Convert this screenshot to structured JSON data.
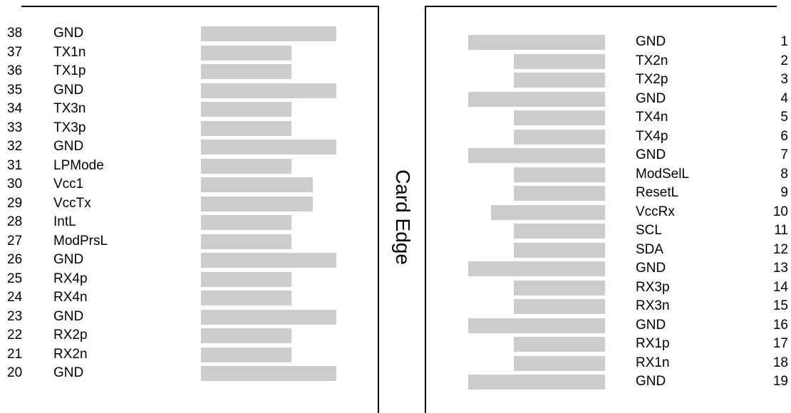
{
  "edge_label": "Card Edge",
  "left_pins": [
    {
      "num": "38",
      "signal": "GND",
      "size": "long"
    },
    {
      "num": "37",
      "signal": "TX1n",
      "size": "short"
    },
    {
      "num": "36",
      "signal": "TX1p",
      "size": "short"
    },
    {
      "num": "35",
      "signal": "GND",
      "size": "long"
    },
    {
      "num": "34",
      "signal": "TX3n",
      "size": "short"
    },
    {
      "num": "33",
      "signal": "TX3p",
      "size": "short"
    },
    {
      "num": "32",
      "signal": "GND",
      "size": "long"
    },
    {
      "num": "31",
      "signal": "LPMode",
      "size": "short"
    },
    {
      "num": "30",
      "signal": "Vcc1",
      "size": "medium"
    },
    {
      "num": "29",
      "signal": "VccTx",
      "size": "medium"
    },
    {
      "num": "28",
      "signal": "IntL",
      "size": "short"
    },
    {
      "num": "27",
      "signal": "ModPrsL",
      "size": "short"
    },
    {
      "num": "26",
      "signal": "GND",
      "size": "long"
    },
    {
      "num": "25",
      "signal": "RX4p",
      "size": "short"
    },
    {
      "num": "24",
      "signal": "RX4n",
      "size": "short"
    },
    {
      "num": "23",
      "signal": "GND",
      "size": "long"
    },
    {
      "num": "22",
      "signal": "RX2p",
      "size": "short"
    },
    {
      "num": "21",
      "signal": "RX2n",
      "size": "short"
    },
    {
      "num": "20",
      "signal": "GND",
      "size": "long"
    }
  ],
  "right_pins": [
    {
      "num": "1",
      "signal": "GND",
      "size": "long"
    },
    {
      "num": "2",
      "signal": "TX2n",
      "size": "short"
    },
    {
      "num": "3",
      "signal": "TX2p",
      "size": "short"
    },
    {
      "num": "4",
      "signal": "GND",
      "size": "long"
    },
    {
      "num": "5",
      "signal": "TX4n",
      "size": "short"
    },
    {
      "num": "6",
      "signal": "TX4p",
      "size": "short"
    },
    {
      "num": "7",
      "signal": "GND",
      "size": "long"
    },
    {
      "num": "8",
      "signal": "ModSelL",
      "size": "short"
    },
    {
      "num": "9",
      "signal": "ResetL",
      "size": "short"
    },
    {
      "num": "10",
      "signal": "VccRx",
      "size": "medium"
    },
    {
      "num": "11",
      "signal": "SCL",
      "size": "short"
    },
    {
      "num": "12",
      "signal": "SDA",
      "size": "short"
    },
    {
      "num": "13",
      "signal": "GND",
      "size": "long"
    },
    {
      "num": "14",
      "signal": "RX3p",
      "size": "short"
    },
    {
      "num": "15",
      "signal": "RX3n",
      "size": "short"
    },
    {
      "num": "16",
      "signal": "GND",
      "size": "long"
    },
    {
      "num": "17",
      "signal": "RX1p",
      "size": "short"
    },
    {
      "num": "18",
      "signal": "RX1n",
      "size": "short"
    },
    {
      "num": "19",
      "signal": "GND",
      "size": "long"
    }
  ],
  "colors": {
    "pad": "#cccccc",
    "border": "#000000"
  }
}
